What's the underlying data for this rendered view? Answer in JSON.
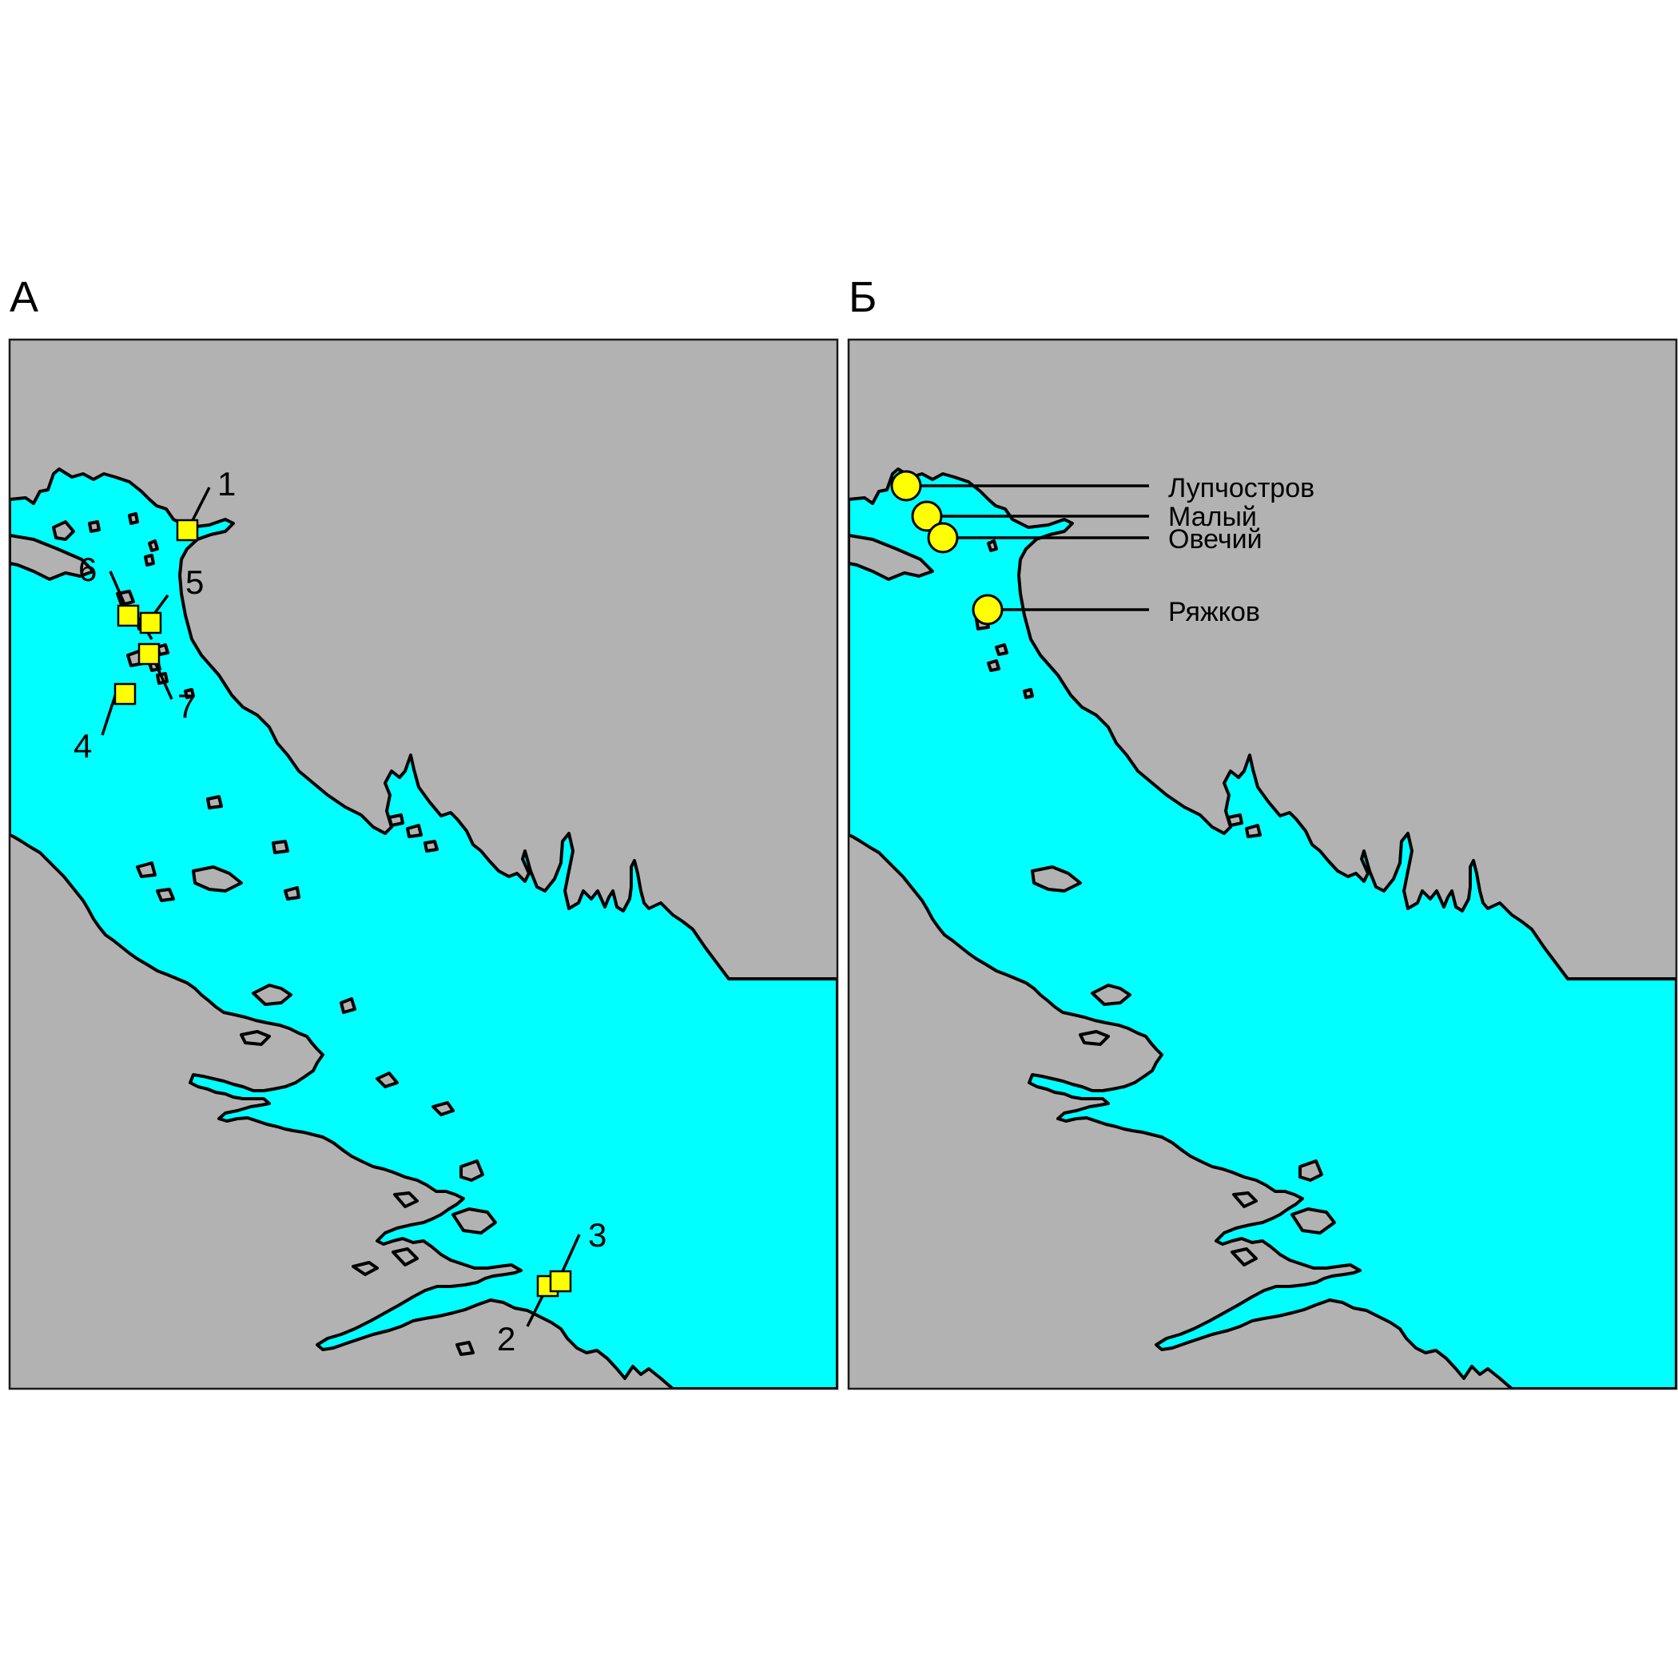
{
  "figure": {
    "panel_a_label": "А",
    "panel_b_label": "Б"
  },
  "colors": {
    "water": "#00ffff",
    "land": "#b2b2b2",
    "marker": "#ffff00",
    "outline": "#000000"
  },
  "panel_a": {
    "marker_shape": "square",
    "sites": [
      {
        "label": "1"
      },
      {
        "label": "2"
      },
      {
        "label": "3"
      },
      {
        "label": "4"
      },
      {
        "label": "5"
      },
      {
        "label": "6"
      },
      {
        "label": "7"
      }
    ]
  },
  "panel_b": {
    "marker_shape": "circle",
    "sites": [
      {
        "label": "Лупчостров"
      },
      {
        "label": "Малый"
      },
      {
        "label": "Овечий"
      },
      {
        "label": "Ряжков"
      }
    ]
  }
}
